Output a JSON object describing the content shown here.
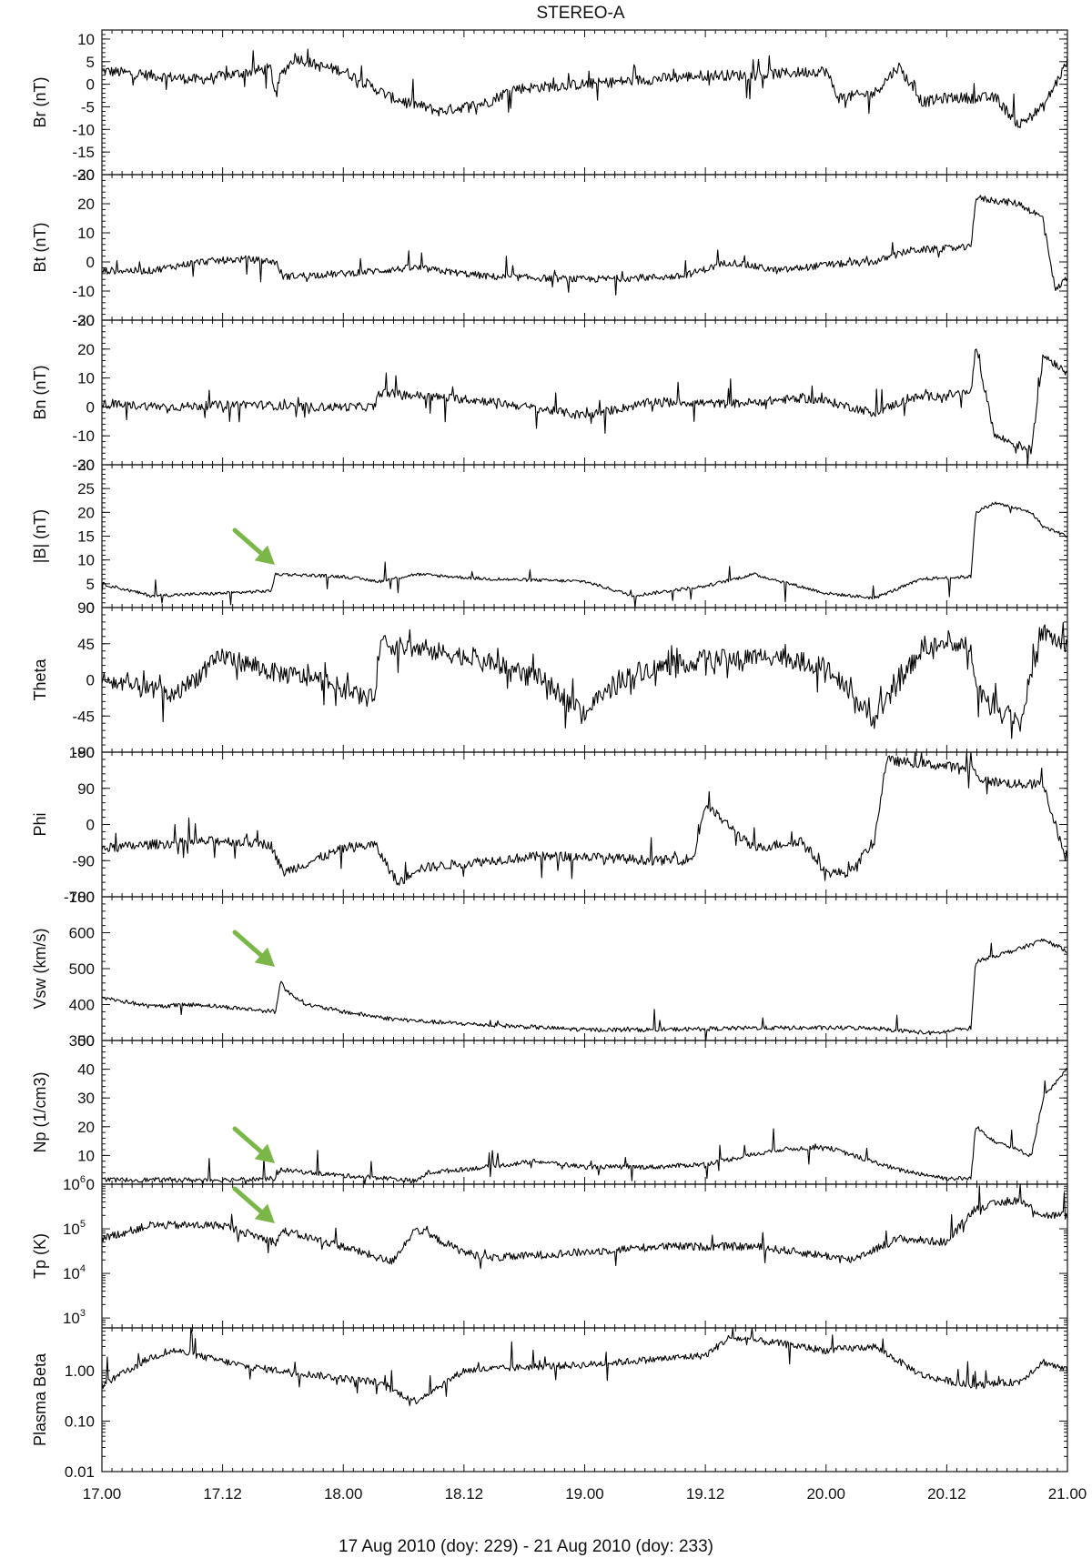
{
  "colors": {
    "trace": "#000000",
    "axes": "#111111",
    "arrow": "#7ab648"
  },
  "chart_data": {
    "type": "line",
    "title": "STEREO-A",
    "xlabel": "17  Aug 2010 (doy: 229) - 21  Aug 2010 (doy: 233)",
    "x_ticks": [
      "17.00",
      "17.12",
      "18.00",
      "18.12",
      "19.00",
      "19.12",
      "20.00",
      "20.12",
      "21.00"
    ],
    "xlim": [
      17.0,
      21.0
    ],
    "grid": false,
    "panels": [
      {
        "name": "Br",
        "ylabel": "Br (nT)",
        "scale": "linear",
        "ylim": [
          -20,
          12
        ],
        "yticks": [
          10,
          5,
          0,
          -5,
          -10,
          -15,
          -20
        ],
        "yticklabels": [
          "10",
          "5",
          "0",
          "-5",
          "-10",
          "-15",
          "-20"
        ],
        "noise": 1.2,
        "spike": 0.05,
        "x": [
          17.0,
          17.2,
          17.4,
          17.7,
          17.72,
          17.74,
          17.8,
          17.9,
          18.0,
          18.2,
          18.4,
          18.6,
          18.7,
          19.0,
          19.5,
          19.7,
          20.0,
          20.05,
          20.2,
          20.3,
          20.4,
          20.5,
          20.7,
          20.8,
          20.9,
          21.0
        ],
        "y": [
          3,
          2,
          1,
          3.5,
          -3,
          2,
          6,
          4,
          3,
          -3,
          -6,
          -4,
          -1,
          0,
          2,
          2,
          3,
          -3,
          -2,
          4,
          -4,
          -3,
          -3,
          -9,
          -5,
          5
        ]
      },
      {
        "name": "Bt",
        "ylabel": "Bt (nT)",
        "scale": "linear",
        "ylim": [
          -20,
          30
        ],
        "yticks": [
          30,
          20,
          10,
          0,
          -10,
          -20
        ],
        "yticklabels": [
          "30",
          "20",
          "10",
          "0",
          "-10",
          "-20"
        ],
        "noise": 1.2,
        "spike": 0.04,
        "x": [
          17.0,
          17.2,
          17.4,
          17.6,
          17.72,
          17.75,
          18.0,
          18.3,
          18.6,
          19.0,
          19.4,
          19.6,
          19.8,
          20.0,
          20.2,
          20.35,
          20.6,
          20.62,
          20.8,
          20.9,
          20.95,
          21.0
        ],
        "y": [
          -3,
          -3,
          0,
          1,
          0,
          -5,
          -4,
          -2,
          -5,
          -6,
          -5,
          0,
          -3,
          -1,
          0,
          4,
          5,
          22,
          20,
          15,
          -10,
          -5
        ]
      },
      {
        "name": "Bn",
        "ylabel": "Bn (nT)",
        "scale": "linear",
        "ylim": [
          -20,
          30
        ],
        "yticks": [
          30,
          20,
          10,
          0,
          -10,
          -20
        ],
        "yticklabels": [
          "30",
          "20",
          "10",
          "0",
          "-10",
          "-20"
        ],
        "noise": 1.5,
        "spike": 0.05,
        "x": [
          17.0,
          17.3,
          17.6,
          17.8,
          18.0,
          18.13,
          18.15,
          18.3,
          18.6,
          19.0,
          19.3,
          19.6,
          19.9,
          20.0,
          20.2,
          20.35,
          20.6,
          20.62,
          20.7,
          20.85,
          20.9,
          21.0
        ],
        "y": [
          1,
          0,
          1,
          0,
          0,
          0,
          5,
          4,
          2,
          -3,
          2,
          1,
          3,
          2,
          -2,
          3,
          5,
          20,
          -10,
          -15,
          18,
          12
        ]
      },
      {
        "name": "|B|",
        "ylabel": "|B| (nT)",
        "scale": "linear",
        "ylim": [
          0,
          30
        ],
        "yticks": [
          30,
          25,
          20,
          15,
          10,
          5,
          0
        ],
        "yticklabels": [
          "30",
          "25",
          "20",
          "15",
          "10",
          "5",
          "0"
        ],
        "noise": 0.35,
        "spike": 0.02,
        "x": [
          17.0,
          17.2,
          17.5,
          17.7,
          17.72,
          17.75,
          18.0,
          18.15,
          18.3,
          18.6,
          19.0,
          19.2,
          19.5,
          19.7,
          20.0,
          20.2,
          20.4,
          20.6,
          20.62,
          20.7,
          20.85,
          20.9,
          21.0
        ],
        "y": [
          5,
          2.5,
          3,
          3.5,
          7,
          7,
          6.5,
          5.5,
          7,
          6,
          5.5,
          2.5,
          4.5,
          7,
          3,
          2,
          6,
          6.5,
          20,
          22,
          20,
          17,
          15
        ]
      },
      {
        "name": "Theta",
        "ylabel": "Theta",
        "scale": "linear",
        "ylim": [
          -90,
          90
        ],
        "yticks": [
          90,
          45,
          0,
          -45,
          -90
        ],
        "yticklabels": [
          "90",
          "45",
          "0",
          "-45",
          "-90"
        ],
        "noise": 12,
        "spike": 0.14,
        "x": [
          17.0,
          17.3,
          17.5,
          17.7,
          17.9,
          18.13,
          18.15,
          18.5,
          18.8,
          19.0,
          19.2,
          19.5,
          19.8,
          20.0,
          20.2,
          20.4,
          20.6,
          20.62,
          20.7,
          20.8,
          20.9,
          21.0
        ],
        "y": [
          0,
          -20,
          30,
          10,
          0,
          -25,
          45,
          30,
          5,
          -40,
          10,
          25,
          30,
          15,
          -50,
          40,
          45,
          -10,
          -30,
          -50,
          60,
          40
        ]
      },
      {
        "name": "Phi",
        "ylabel": "Phi",
        "scale": "linear",
        "ylim": [
          -180,
          180
        ],
        "yticks": [
          180,
          90,
          0,
          -90,
          -180
        ],
        "yticklabels": [
          "180",
          "90",
          "0",
          "-90",
          "-180"
        ],
        "noise": 12,
        "spike": 0.06,
        "x": [
          17.0,
          17.2,
          17.5,
          17.7,
          17.75,
          18.0,
          18.13,
          18.23,
          18.3,
          18.6,
          18.8,
          19.0,
          19.3,
          19.45,
          19.5,
          19.7,
          19.9,
          20.0,
          20.1,
          20.2,
          20.25,
          20.5,
          20.6,
          20.65,
          20.8,
          20.9,
          21.0
        ],
        "y": [
          -60,
          -50,
          -40,
          -50,
          -120,
          -60,
          -50,
          -150,
          -110,
          -90,
          -80,
          -80,
          -90,
          -85,
          50,
          -60,
          -40,
          -120,
          -120,
          -40,
          160,
          145,
          140,
          110,
          100,
          100,
          -100
        ]
      },
      {
        "name": "Vsw",
        "ylabel": "Vsw (km/s)",
        "scale": "linear",
        "ylim": [
          300,
          700
        ],
        "yticks": [
          700,
          600,
          500,
          400,
          300
        ],
        "yticklabels": [
          "700",
          "600",
          "500",
          "400",
          "300"
        ],
        "noise": 6,
        "spike": 0.01,
        "x": [
          17.0,
          17.2,
          17.4,
          17.72,
          17.74,
          17.76,
          17.85,
          18.0,
          18.2,
          18.4,
          18.7,
          19.0,
          19.3,
          19.7,
          20.0,
          20.2,
          20.35,
          20.45,
          20.6,
          20.62,
          20.8,
          20.9,
          21.0
        ],
        "y": [
          420,
          395,
          400,
          380,
          470,
          440,
          400,
          380,
          360,
          350,
          340,
          330,
          330,
          335,
          335,
          335,
          325,
          320,
          335,
          520,
          555,
          580,
          550
        ]
      },
      {
        "name": "Np",
        "ylabel": "Np (1/cm3)",
        "scale": "linear",
        "ylim": [
          0,
          50
        ],
        "yticks": [
          50,
          40,
          30,
          20,
          10,
          0
        ],
        "yticklabels": [
          "50",
          "40",
          "30",
          "20",
          "10",
          "0"
        ],
        "noise": 0.8,
        "spike": 0.05,
        "x": [
          17.0,
          17.5,
          17.72,
          17.74,
          18.0,
          18.2,
          18.3,
          18.35,
          18.6,
          18.8,
          19.0,
          19.3,
          19.5,
          19.8,
          20.0,
          20.3,
          20.5,
          20.6,
          20.62,
          20.7,
          20.85,
          20.9,
          21.0
        ],
        "y": [
          1.5,
          1.5,
          2,
          5,
          3,
          2,
          1,
          4,
          6,
          8,
          6,
          6,
          7,
          12,
          13,
          5,
          2,
          2,
          20,
          15,
          10,
          30,
          40
        ]
      },
      {
        "name": "Tp",
        "ylabel": "Tp (K)",
        "scale": "log",
        "ylim": [
          600,
          1000000
        ],
        "yticks": [
          1000000,
          100000,
          10000,
          1000
        ],
        "yticklabels": [
          "10",
          "10",
          "10",
          "10"
        ],
        "yticklabel_exponents": [
          "6",
          "5",
          "4",
          "3"
        ],
        "noise": 0.09,
        "spike": 0.03,
        "x": [
          17.0,
          17.2,
          17.5,
          17.72,
          17.75,
          18.0,
          18.2,
          18.3,
          18.5,
          18.6,
          19.0,
          19.3,
          19.7,
          20.0,
          20.1,
          20.3,
          20.5,
          20.62,
          20.8,
          20.9,
          21.0
        ],
        "y": [
          60000,
          120000,
          120000,
          50000,
          90000,
          40000,
          18000,
          100000,
          30000,
          22000,
          30000,
          40000,
          40000,
          25000,
          20000,
          60000,
          50000,
          300000,
          450000,
          200000,
          200000
        ]
      },
      {
        "name": "Plasma Beta",
        "ylabel": "Plasma Beta",
        "scale": "log",
        "ylim": [
          0.01,
          7
        ],
        "yticks": [
          1,
          0.1,
          0.01
        ],
        "yticklabels": [
          "1.00",
          "0.10",
          "0.01"
        ],
        "noise": 0.07,
        "spike": 0.05,
        "x": [
          17.0,
          17.2,
          17.3,
          17.6,
          18.0,
          18.13,
          18.3,
          18.5,
          18.8,
          19.0,
          19.5,
          19.6,
          19.8,
          20.0,
          20.2,
          20.4,
          20.6,
          20.8,
          20.9,
          21.0
        ],
        "y": [
          0.5,
          1.8,
          2.5,
          1.2,
          0.7,
          0.6,
          0.25,
          1.0,
          1.2,
          1.3,
          2.0,
          4.5,
          3.5,
          2.5,
          3.0,
          0.8,
          0.5,
          0.6,
          1.5,
          1.0
        ]
      }
    ]
  }
}
